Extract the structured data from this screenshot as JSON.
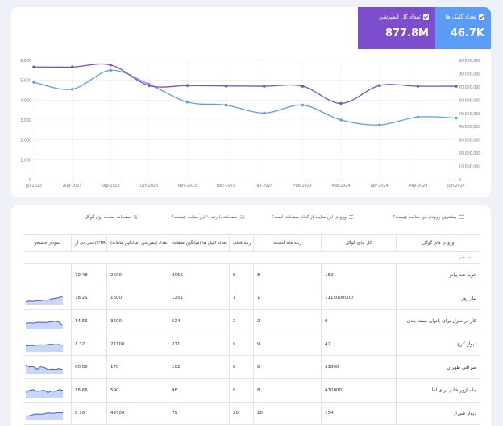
{
  "kpis": {
    "clicks": {
      "label": "تعداد کلیک ها",
      "value": "46.7K",
      "color": "#5b9cf6"
    },
    "impressions": {
      "label": "تعداد کل ایمپرشن",
      "value": "877.8M",
      "color": "#7c4dcc"
    }
  },
  "chart_data": {
    "type": "line",
    "categories": [
      "Jul-2023",
      "Aug-2023",
      "Sep-2023",
      "Oct-2023",
      "Nov-2023",
      "Dec-2023",
      "Jan-2024",
      "Feb-2024",
      "Mar-2024",
      "Apr-2024",
      "May-2024",
      "Jun-2024"
    ],
    "left_ticks": [
      "0",
      "1,000",
      "2,000",
      "3,000",
      "4,000",
      "5,000",
      "6,000"
    ],
    "right_ticks": [
      "0",
      "10,000,000",
      "20,000,000",
      "30,000,000",
      "40,000,000",
      "50,000,000",
      "60,000,000",
      "70,000,000",
      "80,000,000",
      "90,000,000"
    ],
    "left_axis": {
      "min": 0,
      "max": 6000
    },
    "right_axis": {
      "min": 0,
      "max": 90000000
    },
    "grid": true,
    "series": [
      {
        "axis": "left",
        "color": "#5b9cf6",
        "values": [
          4900,
          4550,
          5500,
          4800,
          3900,
          3750,
          3350,
          3750,
          3000,
          2750,
          3150,
          3100
        ]
      },
      {
        "axis": "right",
        "color": "#7c4dcc",
        "values": [
          85000000,
          85000000,
          86500000,
          71000000,
          71000000,
          70700000,
          70500000,
          70500000,
          57500000,
          71000000,
          70500000,
          70500000
        ]
      }
    ]
  },
  "tabs": [
    {
      "label": "بیشترین ورودی این سایت چیست؟",
      "icon": "☰",
      "active": true
    },
    {
      "label": "ورودی این سایت از کدام صفحات است؟",
      "icon": "☰",
      "active": false
    },
    {
      "label": "صفحات با رتبه ۱ این سایت چیست؟",
      "icon": "⛁",
      "active": false
    },
    {
      "label": "صفحات صفحه اول گوگل",
      "icon": "⇅",
      "active": false
    }
  ],
  "table": {
    "headers": [
      "ورودی های گوگل",
      "کل نتایج گوگل",
      "رتبه ماه گذشته",
      "رتبه فعلی",
      "تعداد کلیک ها (میانگین ماهانه)",
      "تعداد ایمپرشن (میانگین ماهانه)",
      "سی تی آر (CTR)",
      "نمودار جستجو"
    ],
    "search_placeholder": "جستجو ...",
    "rows": [
      {
        "keyword": "خرید تعد پیانو",
        "total": "162",
        "prev": "8",
        "cur": "8",
        "clicks": "2066",
        "impr": "2600",
        "ctr": "79.48",
        "spark": null
      },
      {
        "keyword": "نیاز روز",
        "total": "1115000000",
        "prev": "1",
        "cur": "1",
        "clicks": "1251",
        "impr": "1600",
        "ctr": "78.21",
        "spark": [
          0.25,
          0.3,
          0.28,
          0.35,
          0.33,
          0.4,
          0.38,
          0.5,
          0.55,
          0.6,
          0.75
        ]
      },
      {
        "keyword": "کار در منزل برای بانوان بسته بندی",
        "total": "0",
        "prev": "2",
        "cur": "2",
        "clicks": "524",
        "impr": "3600",
        "ctr": "14.56",
        "spark": [
          0.4,
          0.45,
          0.42,
          0.48,
          0.5,
          0.47,
          0.5,
          0.55,
          0.6,
          0.5,
          0.2
        ]
      },
      {
        "keyword": "دیوار کرج",
        "total": "42",
        "prev": "9",
        "cur": "9",
        "clicks": "371",
        "impr": "27100",
        "ctr": "1.37",
        "spark": [
          0.45,
          0.5,
          0.48,
          0.52,
          0.55,
          0.53,
          0.58,
          0.6,
          0.55,
          0.58,
          0.5
        ]
      },
      {
        "keyword": "صرافی طهران",
        "total": "31800",
        "prev": "8",
        "cur": "8",
        "clicks": "102",
        "impr": "170",
        "ctr": "60.00",
        "spark": [
          0.75,
          0.6,
          0.62,
          0.4,
          0.6,
          0.55,
          0.35,
          0.4,
          0.38,
          0.45,
          0.35
        ]
      },
      {
        "keyword": "ماساژور خانم برای لقا",
        "total": "470000",
        "prev": "8",
        "cur": "8",
        "clicks": "98",
        "impr": "590",
        "ctr": "16.66",
        "spark": [
          0.4,
          0.6,
          0.65,
          0.5,
          0.55,
          0.6,
          0.4,
          0.55,
          0.5,
          0.65,
          0.6
        ]
      },
      {
        "keyword": "دیوار شیراز",
        "total": "134",
        "prev": "20",
        "cur": "20",
        "clicks": "79",
        "impr": "49500",
        "ctr": "0.16",
        "spark": [
          0.3,
          0.35,
          0.45,
          0.5,
          0.48,
          0.52,
          0.6,
          0.55,
          0.58,
          0.62,
          0.6
        ]
      }
    ]
  }
}
